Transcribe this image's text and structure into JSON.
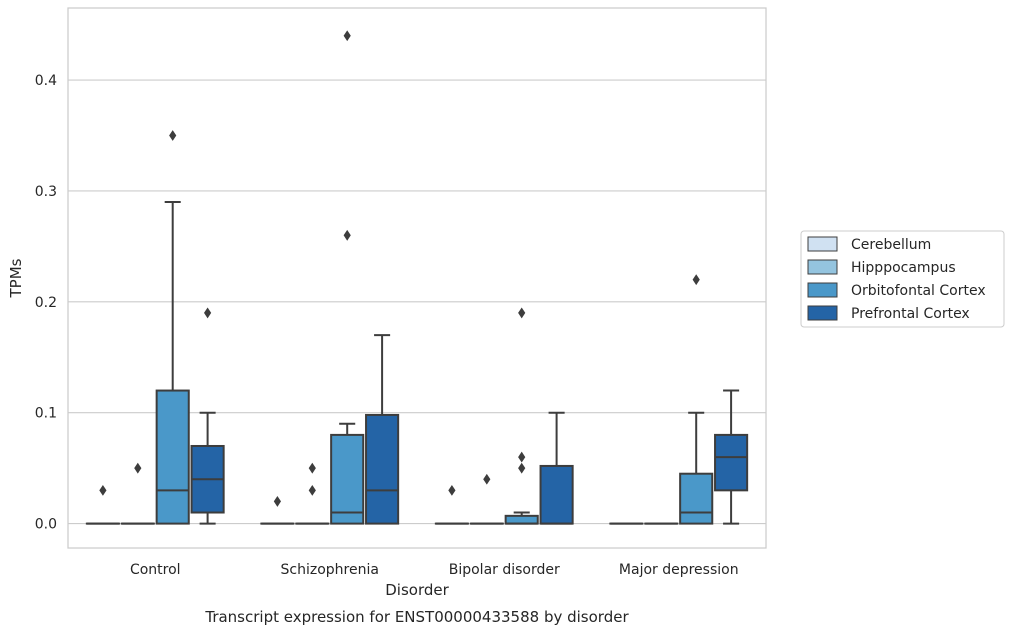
{
  "chart_data": {
    "type": "boxplot",
    "title": "Transcript expression for ENST00000433588 by disorder",
    "xlabel": "Disorder",
    "ylabel": "TPMs",
    "ylim": [
      -0.022,
      0.465
    ],
    "yticks": [
      0.0,
      0.1,
      0.2,
      0.3,
      0.4
    ],
    "ytick_labels": [
      "0.0",
      "0.1",
      "0.2",
      "0.3",
      "0.4"
    ],
    "grid": "horizontal",
    "legend_position": "right",
    "categories": [
      "Control",
      "Schizophrenia",
      "Bipolar disorder",
      "Major depression"
    ],
    "series": [
      {
        "name": "Cerebellum",
        "color": "#d0e1f2",
        "boxes": [
          {
            "q1": 0,
            "median": 0,
            "q3": 0,
            "whisker_low": 0,
            "whisker_high": 0,
            "outliers": [
              0.03
            ]
          },
          {
            "q1": 0,
            "median": 0,
            "q3": 0,
            "whisker_low": 0,
            "whisker_high": 0,
            "outliers": [
              0.02
            ]
          },
          {
            "q1": 0,
            "median": 0,
            "q3": 0,
            "whisker_low": 0,
            "whisker_high": 0,
            "outliers": [
              0.03
            ]
          },
          {
            "q1": 0,
            "median": 0,
            "q3": 0,
            "whisker_low": 0,
            "whisker_high": 0,
            "outliers": []
          }
        ]
      },
      {
        "name": "Hipppocampus",
        "color": "#94c4df",
        "boxes": [
          {
            "q1": 0,
            "median": 0,
            "q3": 0,
            "whisker_low": 0,
            "whisker_high": 0,
            "outliers": [
              0.05
            ]
          },
          {
            "q1": 0,
            "median": 0,
            "q3": 0,
            "whisker_low": 0,
            "whisker_high": 0,
            "outliers": [
              0.03,
              0.05
            ]
          },
          {
            "q1": 0,
            "median": 0,
            "q3": 0,
            "whisker_low": 0,
            "whisker_high": 0,
            "outliers": [
              0.04
            ]
          },
          {
            "q1": 0,
            "median": 0,
            "q3": 0,
            "whisker_low": 0,
            "whisker_high": 0,
            "outliers": []
          }
        ]
      },
      {
        "name": "Orbitofontal Cortex",
        "color": "#4a98c9",
        "boxes": [
          {
            "q1": 0,
            "median": 0.03,
            "q3": 0.12,
            "whisker_low": 0,
            "whisker_high": 0.29,
            "outliers": [
              0.35
            ]
          },
          {
            "q1": 0,
            "median": 0.01,
            "q3": 0.08,
            "whisker_low": 0,
            "whisker_high": 0.09,
            "outliers": [
              0.26,
              0.44
            ]
          },
          {
            "q1": 0,
            "median": 0,
            "q3": 0.007,
            "whisker_low": 0,
            "whisker_high": 0.01,
            "outliers": [
              0.05,
              0.06,
              0.19
            ]
          },
          {
            "q1": 0,
            "median": 0.01,
            "q3": 0.045,
            "whisker_low": 0,
            "whisker_high": 0.1,
            "outliers": [
              0.22
            ]
          }
        ]
      },
      {
        "name": "Prefrontal Cortex",
        "color": "#2464a6",
        "boxes": [
          {
            "q1": 0.01,
            "median": 0.04,
            "q3": 0.07,
            "whisker_low": 0,
            "whisker_high": 0.1,
            "outliers": [
              0.19
            ]
          },
          {
            "q1": 0,
            "median": 0.03,
            "q3": 0.098,
            "whisker_low": 0,
            "whisker_high": 0.17,
            "outliers": []
          },
          {
            "q1": 0,
            "median": 0,
            "q3": 0.052,
            "whisker_low": 0,
            "whisker_high": 0.1,
            "outliers": []
          },
          {
            "q1": 0.03,
            "median": 0.06,
            "q3": 0.08,
            "whisker_low": 0,
            "whisker_high": 0.12,
            "outliers": []
          }
        ]
      }
    ]
  }
}
